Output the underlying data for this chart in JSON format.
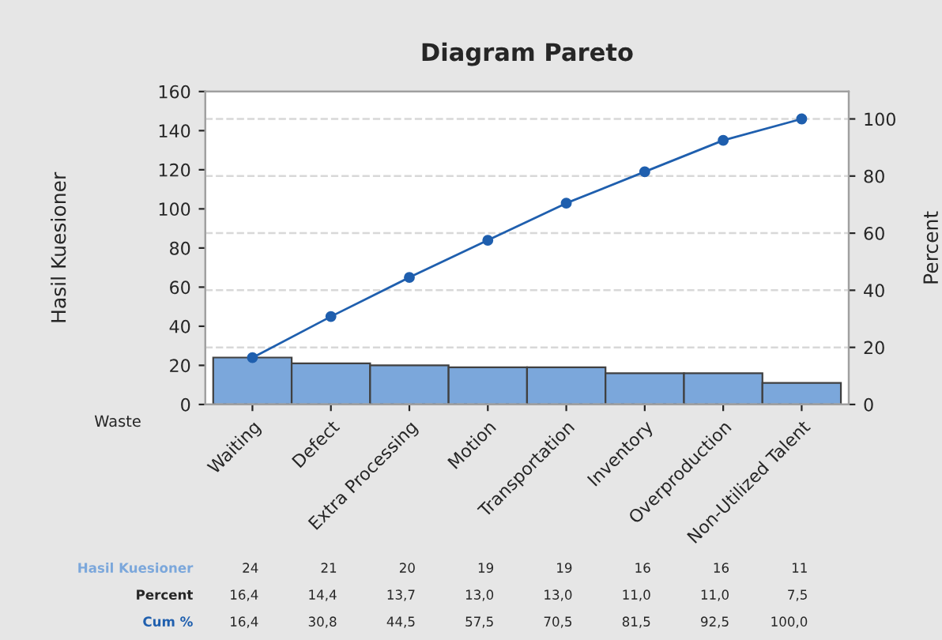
{
  "chart_data": {
    "type": "bar",
    "title": "Diagram Pareto",
    "xlabel": "Waste",
    "ylabel": "Hasil Kuesioner",
    "y2label": "Percent",
    "categories": [
      "Waiting",
      "Defect",
      "Extra Processing",
      "Motion",
      "Transportation",
      "Inventory",
      "Overproduction",
      "Non-Utilized Talent"
    ],
    "series": [
      {
        "name": "Hasil Kuesioner",
        "color": "#7ba7db",
        "values": [
          24,
          21,
          20,
          19,
          19,
          16,
          16,
          11
        ],
        "value_labels": [
          "24",
          "21",
          "20",
          "19",
          "19",
          "16",
          "16",
          "11"
        ]
      },
      {
        "name": "Cum %",
        "type": "line",
        "axis": "y2",
        "color": "#1f5fae",
        "values": [
          16.4,
          30.8,
          44.5,
          57.5,
          70.5,
          81.5,
          92.5,
          100.0
        ],
        "value_labels": [
          "16,4",
          "30,8",
          "44,5",
          "57,5",
          "70,5",
          "81,5",
          "92,5",
          "100,0"
        ]
      }
    ],
    "annotations": [
      "16,4",
      "14,4",
      "13,7",
      "13,0",
      "13,0",
      "11,0",
      "11,0",
      "7,5"
    ],
    "ylim": [
      0,
      160
    ],
    "yticks": [
      0,
      20,
      40,
      60,
      80,
      100,
      120,
      140,
      160
    ],
    "y2lim": [
      0,
      109.6
    ],
    "y2ticks": [
      0,
      20,
      40,
      60,
      80,
      100
    ],
    "grid": true,
    "marker": "circle",
    "line_style": "solid",
    "legend": false
  }
}
